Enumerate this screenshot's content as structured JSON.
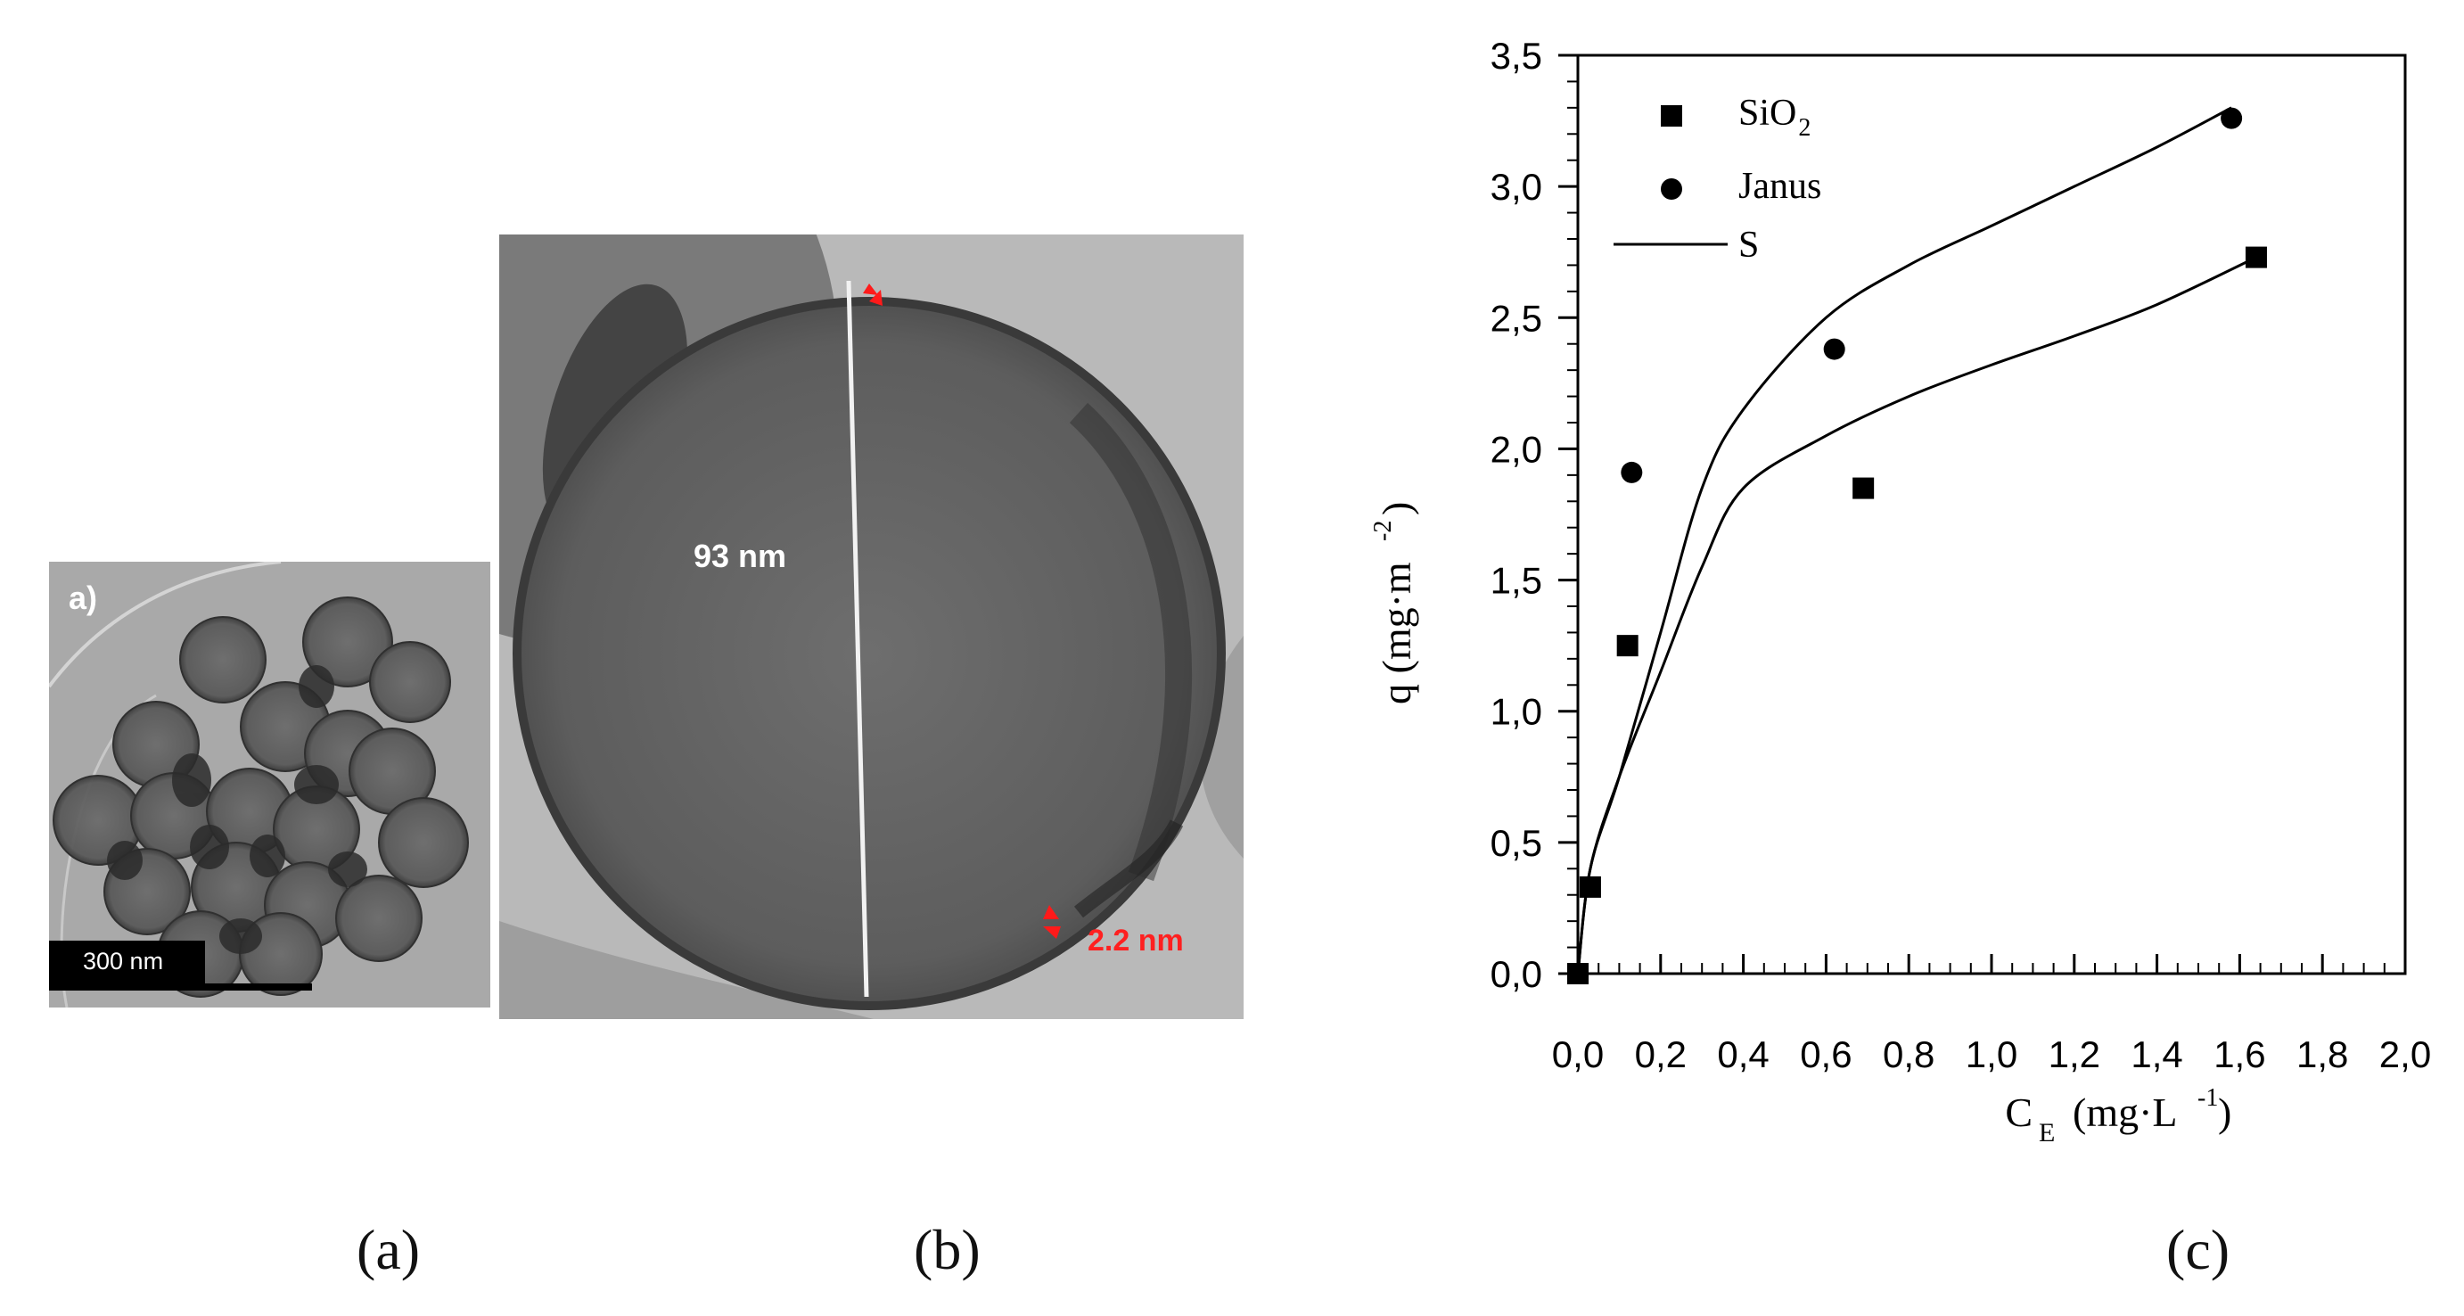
{
  "figure": {
    "captions": [
      "(a)",
      "(b)",
      "(c)"
    ],
    "panel_a": {
      "label": "a)",
      "scale_bar": "300 nm"
    },
    "panel_b": {
      "diameter_label": "93 nm",
      "thickness_label": "2.2 nm"
    }
  },
  "chart_data": {
    "type": "scatter",
    "xlabel_main": "C",
    "xlabel_sub": "E",
    "xlabel_unit": "(mg·L",
    "xlabel_exp": "-1",
    "xlabel_close": ")",
    "ylabel_main": "q (mg·m",
    "ylabel_exp": "-2",
    "ylabel_close": ")",
    "xlim": [
      0,
      2.0
    ],
    "ylim": [
      0,
      3.5
    ],
    "xticks": [
      "0,0",
      "0,2",
      "0,4",
      "0,6",
      "0,8",
      "1,0",
      "1,2",
      "1,4",
      "1,6",
      "1,8",
      "2,0"
    ],
    "yticks": [
      "0,0",
      "0,5",
      "1,0",
      "1,5",
      "2,0",
      "2,5",
      "3,0",
      "3,5"
    ],
    "legend": [
      {
        "name": "SiO",
        "sub": "2",
        "marker": "square"
      },
      {
        "name": "Janus",
        "marker": "circle"
      },
      {
        "name": "S",
        "marker": "line"
      }
    ],
    "series": [
      {
        "name": "SiO2",
        "marker": "square",
        "x": [
          0.0,
          0.03,
          0.12,
          0.69,
          1.64
        ],
        "y": [
          0.0,
          0.33,
          1.25,
          1.85,
          2.73
        ]
      },
      {
        "name": "Janus",
        "marker": "circle",
        "x": [
          0.13,
          0.62,
          1.58
        ],
        "y": [
          1.91,
          2.38,
          3.26
        ]
      }
    ],
    "fits": [
      {
        "name": "S",
        "x": [
          0.0,
          0.03,
          0.1,
          0.2,
          0.3,
          0.4,
          0.6,
          0.8,
          1.0,
          1.2,
          1.4,
          1.58
        ],
        "y": [
          0.0,
          0.4,
          0.75,
          1.3,
          1.85,
          2.15,
          2.5,
          2.7,
          2.85,
          3.0,
          3.15,
          3.3
        ]
      },
      {
        "name": "S",
        "x": [
          0.0,
          0.03,
          0.1,
          0.2,
          0.3,
          0.4,
          0.6,
          0.8,
          1.0,
          1.2,
          1.4,
          1.64
        ],
        "y": [
          0.0,
          0.4,
          0.75,
          1.15,
          1.55,
          1.85,
          2.05,
          2.2,
          2.32,
          2.43,
          2.55,
          2.73
        ]
      }
    ],
    "colors": {
      "ink": "#000000"
    }
  }
}
